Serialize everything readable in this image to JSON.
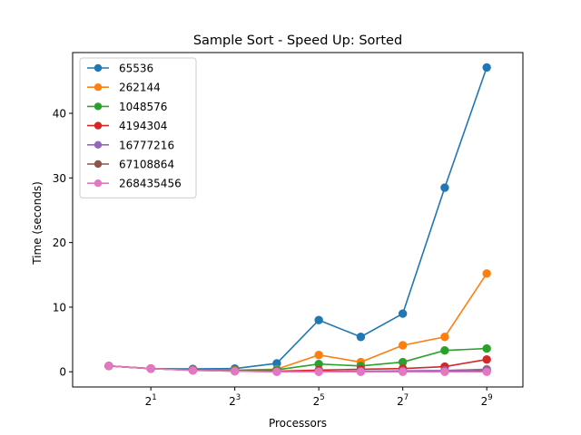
{
  "chart_data": {
    "type": "line",
    "title": "Sample Sort - Speed Up: Sorted",
    "xlabel": "Processors",
    "ylabel": "Time (seconds)",
    "x_scale": "log2",
    "x": [
      1,
      2,
      4,
      8,
      16,
      32,
      64,
      128,
      256,
      512
    ],
    "xlim": [
      0.55,
      930
    ],
    "ylim": [
      -2.35,
      49.4
    ],
    "x_ticks": [
      {
        "value": 2,
        "base": "2",
        "exp": "1"
      },
      {
        "value": 8,
        "base": "2",
        "exp": "3"
      },
      {
        "value": 32,
        "base": "2",
        "exp": "5"
      },
      {
        "value": 128,
        "base": "2",
        "exp": "7"
      },
      {
        "value": 512,
        "base": "2",
        "exp": "9"
      }
    ],
    "y_ticks": [
      0,
      10,
      20,
      30,
      40
    ],
    "y_tick_labels": [
      "0",
      "10",
      "20",
      "30",
      "40"
    ],
    "grid": false,
    "legend_position": "upper-left",
    "series": [
      {
        "name": "65536",
        "color": "#1f77b4",
        "values": [
          0.9,
          0.5,
          0.45,
          0.5,
          1.3,
          8.0,
          5.4,
          9.0,
          28.5,
          47.1
        ]
      },
      {
        "name": "262144",
        "color": "#ff7f0e",
        "values": [
          0.9,
          0.5,
          0.3,
          0.25,
          0.4,
          2.6,
          1.5,
          4.1,
          5.4,
          15.2
        ]
      },
      {
        "name": "1048576",
        "color": "#2ca02c",
        "values": [
          0.9,
          0.5,
          0.25,
          0.2,
          0.3,
          1.2,
          0.9,
          1.5,
          3.3,
          3.6
        ]
      },
      {
        "name": "4194304",
        "color": "#d62728",
        "values": [
          0.9,
          0.5,
          0.25,
          0.15,
          0.1,
          0.25,
          0.4,
          0.5,
          0.8,
          1.9
        ]
      },
      {
        "name": "16777216",
        "color": "#9467bd",
        "values": [
          0.9,
          0.5,
          0.25,
          0.1,
          0.05,
          0.05,
          0.1,
          0.15,
          0.2,
          0.4
        ]
      },
      {
        "name": "67108864",
        "color": "#8c564b",
        "values": [
          0.9,
          0.5,
          0.25,
          0.1,
          0.05,
          0.05,
          0.05,
          0.05,
          0.05,
          0.15
        ]
      },
      {
        "name": "268435456",
        "color": "#e377c2",
        "values": [
          0.9,
          0.5,
          0.2,
          0.1,
          0.0,
          0.0,
          0.0,
          0.0,
          0.0,
          0.0
        ]
      }
    ]
  }
}
